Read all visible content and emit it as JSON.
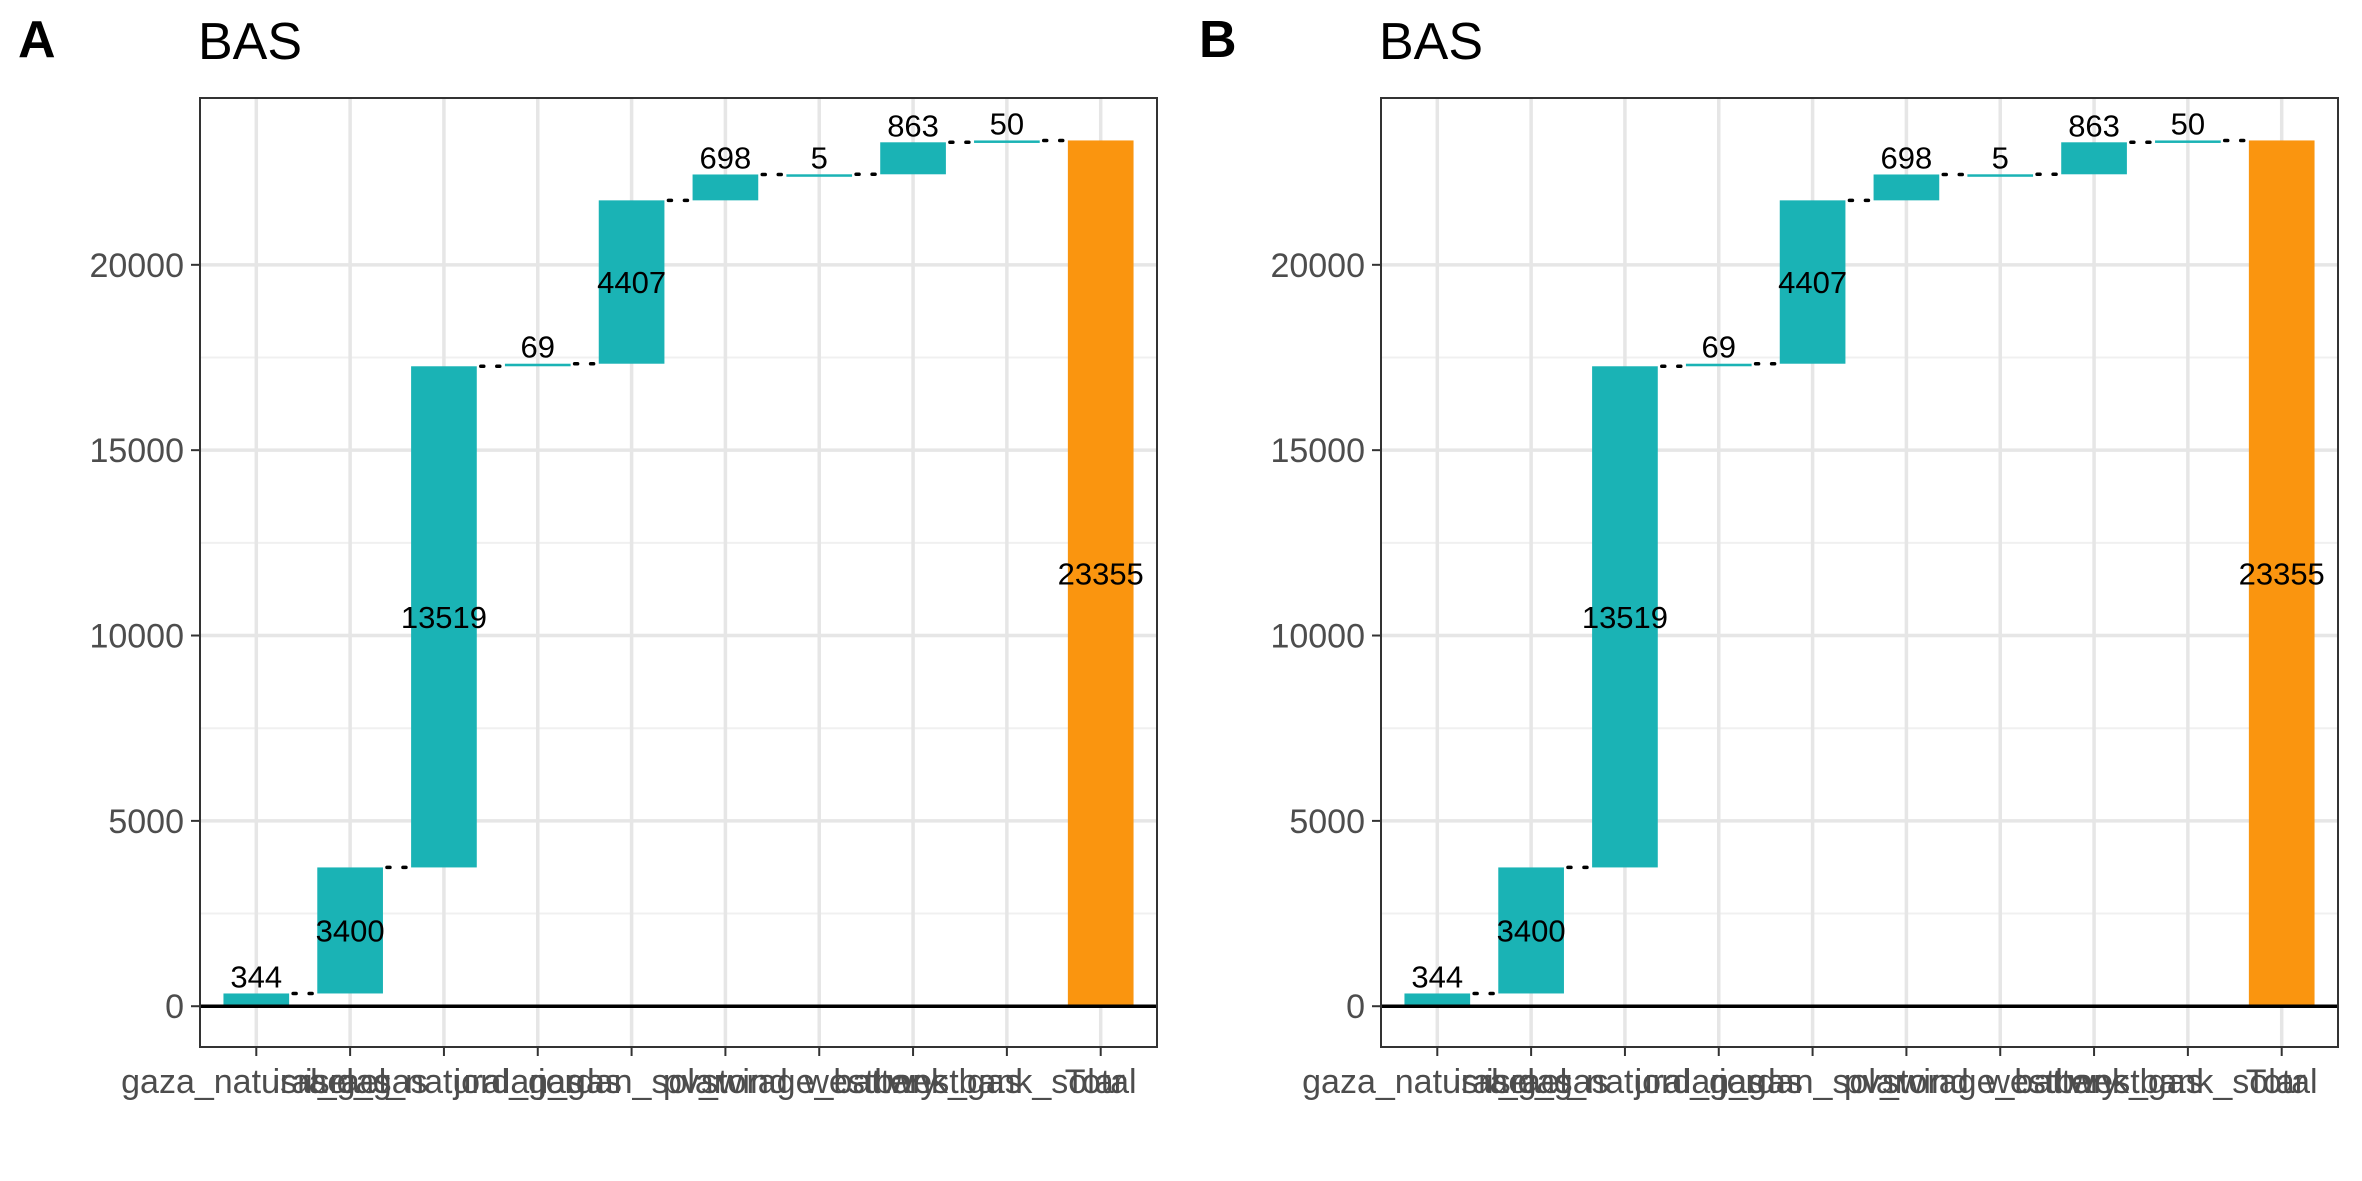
{
  "chart_data": [
    {
      "panel": "A",
      "type": "bar",
      "subtype": "waterfall",
      "title": "BAS",
      "categories": [
        "gaza_natural_gas",
        "israel_gas",
        "israel_natural_gas",
        "jordan_gas",
        "jordan_solar",
        "pv_wind",
        "storage_battery",
        "westbank_gas",
        "westbank_solar",
        "Total"
      ],
      "values": [
        344,
        3400,
        13519,
        69,
        4407,
        698,
        5,
        863,
        50,
        23355
      ],
      "labels": [
        "344",
        "3400",
        "13519",
        "69",
        "4407",
        "698",
        "5",
        "863",
        "50",
        "23355"
      ],
      "total_index": 9,
      "colors": {
        "step": "#1ab3b5",
        "total": "#fa950f"
      },
      "yticks": [
        0,
        5000,
        10000,
        15000,
        20000
      ],
      "ylim": [
        -1100,
        24500
      ],
      "grid": true
    },
    {
      "panel": "B",
      "type": "bar",
      "subtype": "waterfall",
      "title": "BAS",
      "categories": [
        "gaza_natural_gas",
        "israel_gas",
        "israel_natural_gas",
        "jordan_gas",
        "jordan_solar",
        "pv_wind",
        "storage_battery",
        "westbank_gas",
        "westbank_solar",
        "Total"
      ],
      "values": [
        344,
        3400,
        13519,
        69,
        4407,
        698,
        5,
        863,
        50,
        23355
      ],
      "labels": [
        "344",
        "3400",
        "13519",
        "69",
        "4407",
        "698",
        "5",
        "863",
        "50",
        "23355"
      ],
      "total_index": 9,
      "colors": {
        "step": "#1ab3b5",
        "total": "#fa950f"
      },
      "yticks": [
        0,
        5000,
        10000,
        15000,
        20000
      ],
      "ylim": [
        -1100,
        24500
      ],
      "grid": true
    }
  ]
}
